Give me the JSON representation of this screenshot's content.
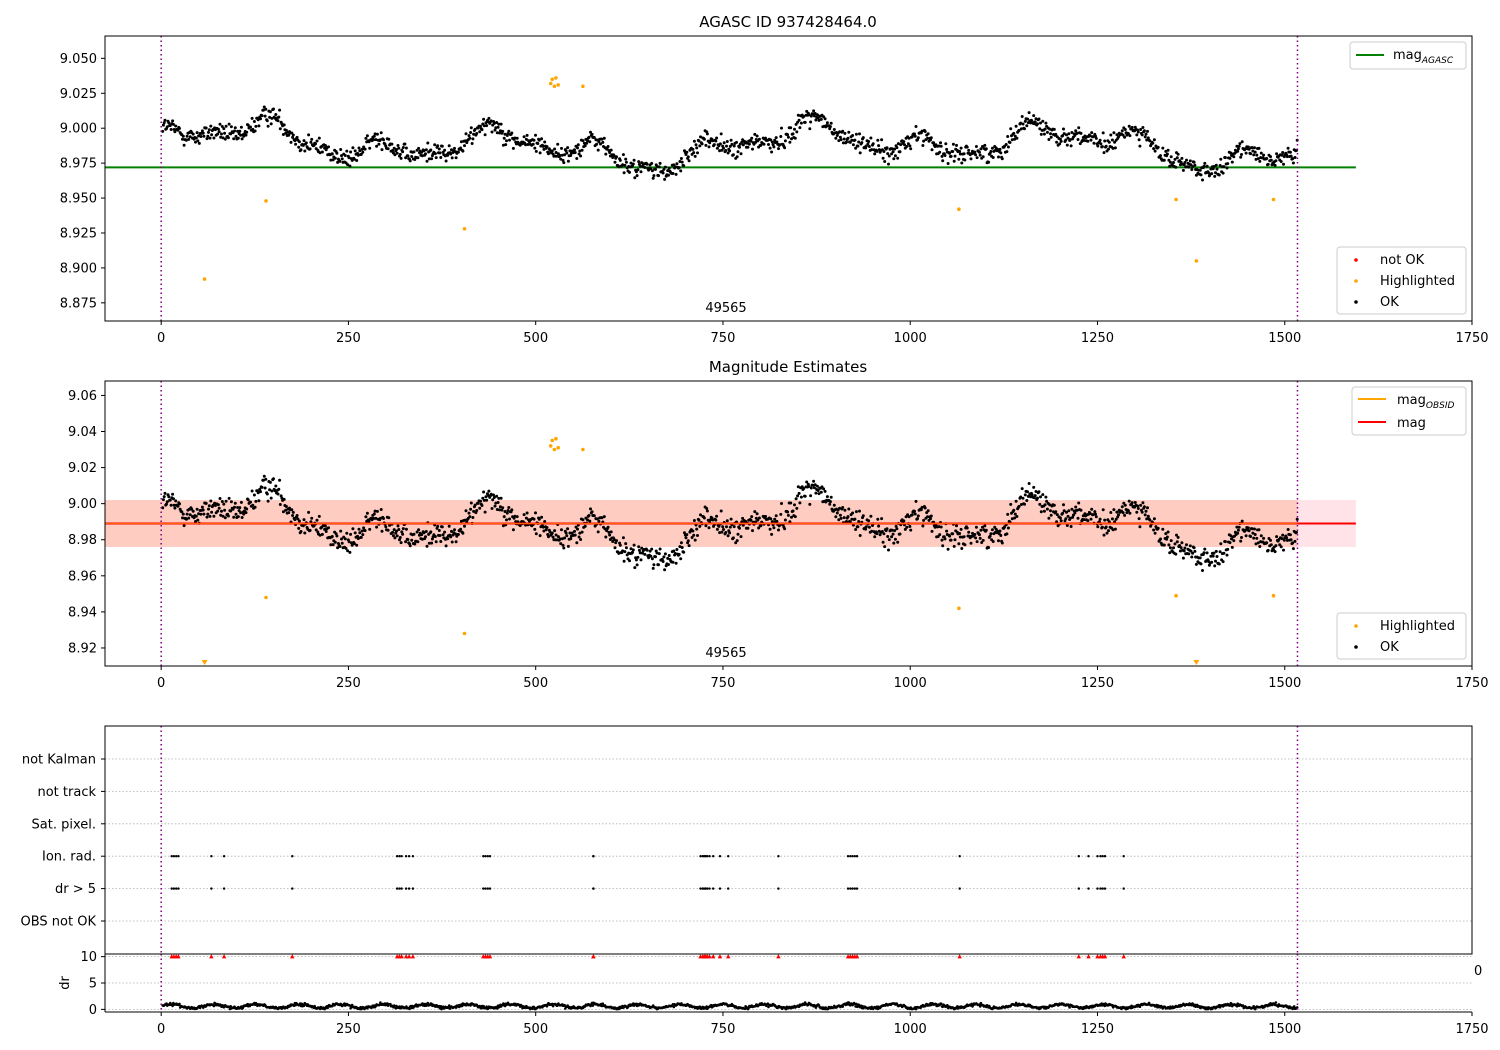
{
  "figure": {
    "title_top": "AGASC ID 937428464.0",
    "title_middle": "Magnitude Estimates",
    "obsid_label": "49565",
    "stray_label": "0"
  },
  "colors": {
    "ok": "#000000",
    "highlighted": "#ffa500",
    "not_ok": "#ff0000",
    "mag_agasc": "#008000",
    "mag_obsid": "#ffa500",
    "mag": "#ff0000",
    "band_outer": "#ffc0cb",
    "band_inner": "#ffa07a",
    "obs_boundary": "#800080",
    "grid": "#b0b0b0"
  },
  "legends": {
    "top_lines": [
      "mag_AGASC"
    ],
    "top_points": [
      "not OK",
      "Highlighted",
      "OK"
    ],
    "middle_lines": [
      "mag_OBSID",
      "mag"
    ],
    "middle_points": [
      "Highlighted",
      "OK"
    ]
  },
  "chart_data": [
    {
      "type": "scatter",
      "title": "AGASC ID 937428464.0",
      "xlim": [
        -75,
        1750
      ],
      "ylim": [
        8.862,
        9.066
      ],
      "xticks": [
        0,
        250,
        500,
        750,
        1000,
        1250,
        1500,
        1750
      ],
      "yticks": [
        8.875,
        8.9,
        8.925,
        8.95,
        8.975,
        9.0,
        9.025,
        9.05
      ],
      "ytick_format": 3,
      "observation_boundaries": [
        0,
        1517
      ],
      "observation_label": {
        "text": "49565",
        "x": 758
      },
      "mag_agasc": 8.972,
      "series": [
        {
          "name": "OK",
          "description": "~1500 samples, 8.95–9.03, dense band around 8.99"
        },
        {
          "name": "Highlighted",
          "points": [
            [
              58,
              8.892
            ],
            [
              140,
              8.948
            ],
            [
              405,
              8.928
            ],
            [
              520,
              9.032
            ],
            [
              522,
              9.035
            ],
            [
              525,
              9.03
            ],
            [
              527,
              9.036
            ],
            [
              530,
              9.031
            ],
            [
              563,
              9.03
            ],
            [
              1065,
              8.942
            ],
            [
              1355,
              8.949
            ],
            [
              1382,
              8.905
            ],
            [
              1485,
              8.949
            ]
          ]
        },
        {
          "name": "not OK",
          "points": []
        }
      ]
    },
    {
      "type": "scatter",
      "title": "Magnitude Estimates",
      "xlim": [
        -75,
        1750
      ],
      "ylim": [
        8.91,
        9.068
      ],
      "xticks": [
        0,
        250,
        500,
        750,
        1000,
        1250,
        1500,
        1750
      ],
      "yticks": [
        8.92,
        8.94,
        8.96,
        8.98,
        9.0,
        9.02,
        9.04,
        9.06
      ],
      "ytick_format": 2,
      "observation_boundaries": [
        0,
        1517
      ],
      "observation_label": {
        "text": "49565",
        "x": 758
      },
      "mag": 8.989,
      "mag_obsid": 8.989,
      "mag_band": [
        8.976,
        9.002
      ],
      "mag_band_xrange": [
        -75,
        1595
      ],
      "series": [
        {
          "name": "OK",
          "description": "same samples as top panel"
        },
        {
          "name": "Highlighted",
          "points": [
            [
              140,
              8.948
            ],
            [
              405,
              8.928
            ],
            [
              520,
              9.032
            ],
            [
              522,
              9.035
            ],
            [
              525,
              9.03
            ],
            [
              527,
              9.036
            ],
            [
              530,
              9.031
            ],
            [
              563,
              9.03
            ],
            [
              1065,
              8.942
            ],
            [
              1355,
              8.949
            ],
            [
              1485,
              8.949
            ]
          ]
        },
        {
          "name": "Highlighted (below axis)",
          "points": [
            [
              58,
              8.91
            ],
            [
              1382,
              8.91
            ]
          ]
        }
      ]
    },
    {
      "type": "scatter",
      "title": "",
      "xlim": [
        -75,
        1750
      ],
      "xticks": [
        0,
        250,
        500,
        750,
        1000,
        1250,
        1500,
        1750
      ],
      "categories": [
        "not Kalman",
        "not track",
        "Sat. pixel.",
        "Ion. rad.",
        "dr > 5",
        "OBS not OK"
      ],
      "flag_times": [
        14,
        17,
        20,
        23,
        67,
        84,
        175,
        315,
        318,
        321,
        327,
        331,
        336,
        430,
        433,
        436,
        439,
        577,
        577,
        720,
        723,
        725,
        727,
        729,
        732,
        737,
        746,
        757,
        824,
        917,
        920,
        923,
        926,
        929,
        1066,
        1225,
        1238,
        1250,
        1254,
        1257,
        1260,
        1285
      ],
      "flagged_categories": [
        "Ion. rad.",
        "dr > 5"
      ],
      "observation_boundaries": [
        0,
        1517
      ]
    },
    {
      "type": "scatter",
      "title": "",
      "ylabel": "dr",
      "xlim": [
        -75,
        1750
      ],
      "ylim": [
        -0.5,
        10.5
      ],
      "xticks": [
        0,
        250,
        500,
        750,
        1000,
        1250,
        1500,
        1750
      ],
      "yticks": [
        0,
        5,
        10
      ],
      "series": [
        {
          "name": "dr",
          "description": "~1500 samples, 0–1.5"
        },
        {
          "name": "dr flagged",
          "description": "red triangles at dr = 10 at the flag_times"
        }
      ],
      "observation_boundaries": [
        0,
        1517
      ]
    }
  ]
}
